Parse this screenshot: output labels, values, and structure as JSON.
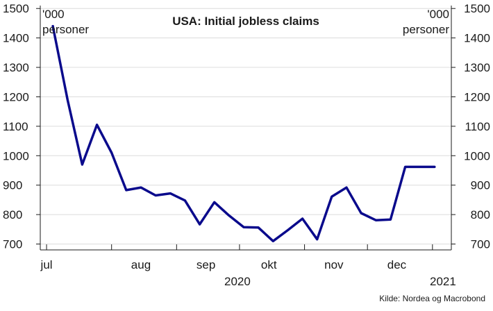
{
  "chart_data": {
    "type": "line",
    "title": "USA: Initial jobless claims",
    "unit_left": [
      "'000",
      "personer"
    ],
    "unit_right": [
      "'000",
      "personer"
    ],
    "source": "Kilde: Nordea og Macrobond",
    "ylim": [
      680,
      1510
    ],
    "yticks": [
      700,
      800,
      900,
      1000,
      1100,
      1200,
      1300,
      1400,
      1500
    ],
    "y_axis_left": true,
    "y_axis_right": true,
    "grid": "horizontal",
    "xlim": [
      "2020-06-28",
      "2021-01-10"
    ],
    "x_month_labels": [
      {
        "label": "jul",
        "date": "2020-07-01"
      },
      {
        "label": "aug",
        "date": "2020-08-15"
      },
      {
        "label": "sep",
        "date": "2020-09-15"
      },
      {
        "label": "okt",
        "date": "2020-10-15"
      },
      {
        "label": "nov",
        "date": "2020-11-15"
      },
      {
        "label": "dec",
        "date": "2020-12-15"
      }
    ],
    "x_month_ticks": [
      "2020-07-01",
      "2020-08-01",
      "2020-09-01",
      "2020-10-01",
      "2020-11-01",
      "2020-12-01",
      "2021-01-01"
    ],
    "x_year_labels": [
      {
        "label": "2020",
        "date": "2020-09-30"
      },
      {
        "label": "2021",
        "date": "2021-01-06"
      }
    ],
    "series": [
      {
        "color": "#0a0a8c",
        "x": [
          "2020-07-04",
          "2020-07-11",
          "2020-07-18",
          "2020-07-25",
          "2020-08-01",
          "2020-08-08",
          "2020-08-15",
          "2020-08-22",
          "2020-08-29",
          "2020-09-05",
          "2020-09-12",
          "2020-09-19",
          "2020-09-26",
          "2020-10-03",
          "2020-10-10",
          "2020-10-17",
          "2020-10-24",
          "2020-10-31",
          "2020-11-07",
          "2020-11-14",
          "2020-11-21",
          "2020-11-28",
          "2020-12-05",
          "2020-12-12",
          "2020-12-19",
          "2020-12-26",
          "2021-01-02"
        ],
        "y": [
          1440,
          1190,
          970,
          1105,
          1010,
          883,
          892,
          865,
          872,
          848,
          767,
          842,
          797,
          757,
          756,
          710,
          747,
          786,
          716,
          861,
          892,
          805,
          781,
          783,
          962,
          962,
          962
        ]
      }
    ]
  }
}
